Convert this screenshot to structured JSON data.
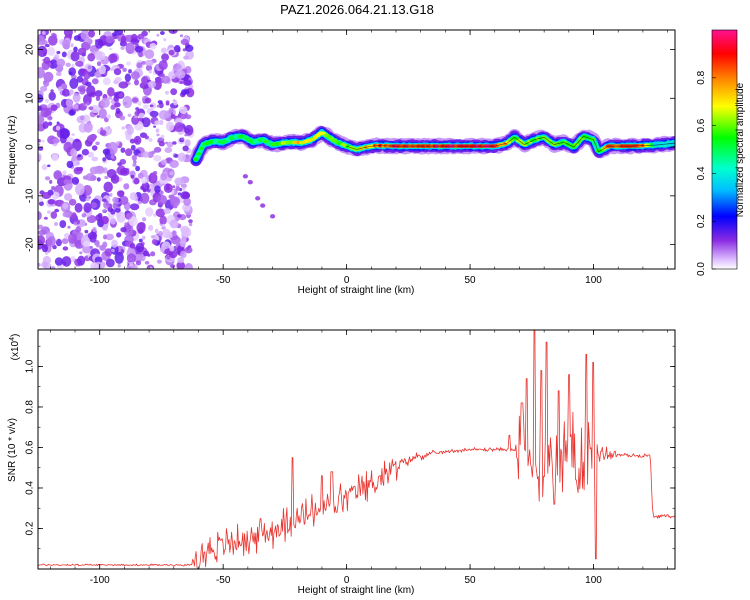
{
  "title": "PAZ1.2026.064.21.13.G18",
  "chart_data": [
    {
      "type": "heatmap",
      "title": "PAZ1.2026.064.21.13.G18",
      "xlabel": "Height of straight line (km)",
      "ylabel": "Frequency (Hz)",
      "xlim": [
        -125,
        133
      ],
      "ylim": [
        -25,
        24
      ],
      "xticks": [
        -100,
        -50,
        0,
        50,
        100
      ],
      "yticks": [
        -20,
        -10,
        0,
        10,
        20
      ],
      "xtick_labels": [
        "-100",
        "-50",
        "0",
        "50",
        "100"
      ],
      "ytick_labels": [
        "-20",
        "-10",
        "0",
        "10",
        "20"
      ],
      "colorbar": {
        "label": "Normalized spectral amplitude",
        "range": [
          0,
          1
        ],
        "ticks": [
          0.0,
          0.2,
          0.4,
          0.6,
          0.8
        ],
        "tick_labels": [
          "0.0",
          "0.2",
          "0.4",
          "0.6",
          "0.8"
        ]
      },
      "noise_region_x": [
        -125,
        -63
      ],
      "noise_level": 0.12,
      "ridge_frequency_points": [
        [
          -61,
          -2.5
        ],
        [
          -58,
          0.5
        ],
        [
          -54,
          1.2
        ],
        [
          -50,
          1.0
        ],
        [
          -46,
          2.0
        ],
        [
          -42,
          2.2
        ],
        [
          -38,
          1.0
        ],
        [
          -34,
          1.5
        ],
        [
          -30,
          0.5
        ],
        [
          -26,
          0.8
        ],
        [
          -22,
          1.0
        ],
        [
          -18,
          0.9
        ],
        [
          -14,
          1.5
        ],
        [
          -10,
          3.0
        ],
        [
          -7,
          2.0
        ],
        [
          -4,
          1.0
        ],
        [
          0,
          0.2
        ],
        [
          4,
          -0.5
        ],
        [
          8,
          0.0
        ],
        [
          12,
          0.3
        ],
        [
          20,
          0.2
        ],
        [
          30,
          0.2
        ],
        [
          40,
          0.2
        ],
        [
          50,
          0.2
        ],
        [
          60,
          0.2
        ],
        [
          65,
          0.8
        ],
        [
          68,
          2.0
        ],
        [
          72,
          0.5
        ],
        [
          76,
          1.5
        ],
        [
          80,
          2.0
        ],
        [
          84,
          0.5
        ],
        [
          88,
          1.0
        ],
        [
          92,
          0.0
        ],
        [
          96,
          2.2
        ],
        [
          100,
          1.5
        ],
        [
          102,
          -1.0
        ],
        [
          106,
          0.2
        ],
        [
          115,
          0.2
        ],
        [
          125,
          0.4
        ],
        [
          133,
          0.8
        ]
      ],
      "ridge_amplitude_points": [
        [
          -61,
          0.55
        ],
        [
          -50,
          0.5
        ],
        [
          -30,
          0.55
        ],
        [
          -20,
          0.75
        ],
        [
          -10,
          0.65
        ],
        [
          0,
          0.6
        ],
        [
          10,
          0.8
        ],
        [
          20,
          0.95
        ],
        [
          40,
          0.97
        ],
        [
          60,
          0.95
        ],
        [
          68,
          0.65
        ],
        [
          80,
          0.6
        ],
        [
          95,
          0.6
        ],
        [
          102,
          0.55
        ],
        [
          106,
          0.85
        ],
        [
          120,
          0.9
        ],
        [
          125,
          0.4
        ],
        [
          133,
          0.4
        ]
      ],
      "secondary_points": [
        [
          -41,
          -6.0
        ],
        [
          -39,
          -7.2
        ],
        [
          -36,
          -10.5
        ],
        [
          -34,
          -12.0
        ],
        [
          -30,
          -14.2
        ]
      ]
    },
    {
      "type": "line",
      "xlabel": "Height of straight line (km)",
      "ylabel": "SNR (10 * v/v)",
      "yscale_label": "(x10",
      "yscale_exponent": "4",
      "xlim": [
        -125,
        133
      ],
      "ylim": [
        0.0,
        1.18
      ],
      "xticks": [
        -100,
        -50,
        0,
        50,
        100
      ],
      "xtick_labels": [
        "-100",
        "-50",
        "0",
        "50",
        "100"
      ],
      "yticks": [
        0.2,
        0.4,
        0.6,
        0.8,
        1.0
      ],
      "ytick_labels": [
        "0.2",
        "0.4",
        "0.6",
        "0.8",
        "1.0"
      ],
      "series": [
        {
          "name": "SNR",
          "color": "#e8332e",
          "baseline_points": [
            [
              -125,
              0.02
            ],
            [
              -63,
              0.02
            ],
            [
              -60,
              0.05
            ],
            [
              -55,
              0.1
            ],
            [
              -50,
              0.12
            ],
            [
              -40,
              0.15
            ],
            [
              -30,
              0.19
            ],
            [
              -20,
              0.24
            ],
            [
              -10,
              0.3
            ],
            [
              0,
              0.36
            ],
            [
              10,
              0.42
            ],
            [
              20,
              0.5
            ],
            [
              25,
              0.54
            ],
            [
              30,
              0.56
            ],
            [
              40,
              0.58
            ],
            [
              50,
              0.59
            ],
            [
              60,
              0.59
            ],
            [
              69,
              0.59
            ],
            [
              70,
              0.56
            ],
            [
              75,
              0.54
            ],
            [
              80,
              0.55
            ],
            [
              90,
              0.57
            ],
            [
              100,
              0.58
            ],
            [
              105,
              0.57
            ],
            [
              115,
              0.56
            ],
            [
              122,
              0.56
            ],
            [
              123,
              0.56
            ],
            [
              124,
              0.26
            ],
            [
              133,
              0.26
            ]
          ],
          "noise_points": [
            [
              -125,
              0.005
            ],
            [
              -63,
              0.005
            ],
            [
              -60,
              0.08
            ],
            [
              -40,
              0.09
            ],
            [
              -20,
              0.1
            ],
            [
              0,
              0.09
            ],
            [
              20,
              0.07
            ],
            [
              25,
              0.03
            ],
            [
              40,
              0.01
            ],
            [
              68,
              0.01
            ],
            [
              70,
              0.2
            ],
            [
              80,
              0.24
            ],
            [
              90,
              0.22
            ],
            [
              100,
              0.2
            ],
            [
              104,
              0.05
            ],
            [
              110,
              0.01
            ],
            [
              123,
              0.01
            ],
            [
              124,
              0.01
            ],
            [
              133,
              0.008
            ]
          ],
          "spikes": [
            [
              -22,
              0.55
            ],
            [
              -10,
              0.46
            ],
            [
              -6,
              0.48
            ],
            [
              -4,
              0.28
            ],
            [
              66,
              0.66
            ],
            [
              71,
              0.82
            ],
            [
              73,
              0.94
            ],
            [
              76,
              1.18
            ],
            [
              79,
              0.98
            ],
            [
              81,
              1.12
            ],
            [
              84,
              0.32
            ],
            [
              86,
              0.88
            ],
            [
              90,
              0.96
            ],
            [
              93,
              0.44
            ],
            [
              97,
              1.06
            ],
            [
              100,
              1.02
            ],
            [
              101,
              0.05
            ],
            [
              103,
              0.58
            ]
          ]
        }
      ]
    }
  ]
}
